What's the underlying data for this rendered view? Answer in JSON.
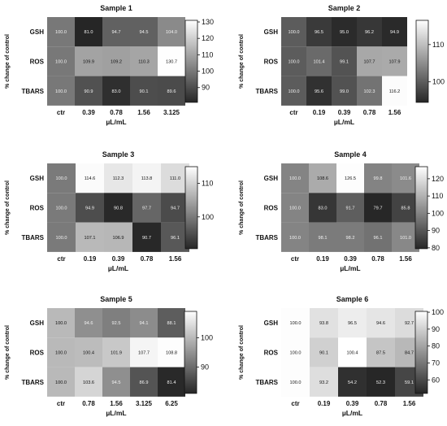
{
  "chart_data": [
    {
      "type": "heatmap",
      "title": "Sample 1",
      "rows": [
        "GSH",
        "ROS",
        "TBARS"
      ],
      "columns": [
        "ctr",
        "0.39",
        "0.78",
        "1.56",
        "3.125"
      ],
      "values": [
        [
          100.0,
          81.0,
          94.7,
          94.5,
          104.0
        ],
        [
          100.0,
          109.9,
          109.2,
          110.3,
          130.7
        ],
        [
          100.0,
          90.9,
          83.0,
          90.1,
          89.6
        ]
      ],
      "value_labels": [
        [
          "100.0",
          "81.0",
          "94.7",
          "94.5",
          "104.0"
        ],
        [
          "100.0",
          "109.9",
          "109.2",
          "110.3",
          "130.7"
        ],
        [
          "100.0",
          "90.9",
          "83.0",
          "90.1",
          "89.6"
        ]
      ],
      "xlabel": "µL/mL",
      "ylabel": "% change of control",
      "colorbar": {
        "min": 81,
        "max": 131,
        "ticks": [
          "90",
          "100",
          "110",
          "120",
          "130"
        ],
        "tick_values": [
          90,
          100,
          110,
          120,
          130
        ]
      }
    },
    {
      "type": "heatmap",
      "title": "Sample 2",
      "rows": [
        "GSH",
        "ROS",
        "TBARS"
      ],
      "columns": [
        "ctr",
        "0.19",
        "0.39",
        "0.78",
        "1.56"
      ],
      "values": [
        [
          100.0,
          96.5,
          95.0,
          96.2,
          94.9
        ],
        [
          100.0,
          101.4,
          99.1,
          107.7,
          107.9
        ],
        [
          100.0,
          95.6,
          99.0,
          102.3,
          116.2
        ]
      ],
      "value_labels": [
        [
          "100.0",
          "96.5",
          "95.0",
          "96.2",
          "94.9"
        ],
        [
          "100.0",
          "101.4",
          "99.1",
          "107.7",
          "107.9"
        ],
        [
          "100.0",
          "95.6",
          "99.0",
          "102.3",
          "116.2"
        ]
      ],
      "xlabel": "µL/mL",
      "ylabel": "% change of control",
      "colorbar": {
        "min": 94.5,
        "max": 116.5,
        "ticks": [
          "100",
          "110"
        ],
        "tick_values": [
          100,
          110
        ]
      }
    },
    {
      "type": "heatmap",
      "title": "Sample 3",
      "rows": [
        "GSH",
        "ROS",
        "TBARS"
      ],
      "columns": [
        "ctr",
        "0.19",
        "0.39",
        "0.78",
        "1.56"
      ],
      "values": [
        [
          100.0,
          114.6,
          112.3,
          113.8,
          111.0
        ],
        [
          100.0,
          94.9,
          90.8,
          97.7,
          94.7
        ],
        [
          100.0,
          107.1,
          106.9,
          90.7,
          96.1
        ]
      ],
      "value_labels": [
        [
          "100.0",
          "114.6",
          "112.3",
          "113.8",
          "111.0"
        ],
        [
          "100.0",
          "94.9",
          "90.8",
          "97.7",
          "94.7"
        ],
        [
          "100.0",
          "107.1",
          "106.9",
          "90.7",
          "96.1"
        ]
      ],
      "xlabel": "µL/mL",
      "ylabel": "% change of control",
      "colorbar": {
        "min": 90.5,
        "max": 115,
        "ticks": [
          "100",
          "110"
        ],
        "tick_values": [
          100,
          110
        ]
      }
    },
    {
      "type": "heatmap",
      "title": "Sample 4",
      "rows": [
        "GSH",
        "ROS",
        "TBARS"
      ],
      "columns": [
        "ctr",
        "0.19",
        "0.39",
        "0.78",
        "1.56"
      ],
      "values": [
        [
          100.0,
          108.6,
          126.5,
          99.8,
          101.6
        ],
        [
          100.0,
          83.0,
          91.7,
          79.7,
          85.8
        ],
        [
          100.0,
          98.1,
          98.2,
          96.1,
          101.0
        ]
      ],
      "value_labels": [
        [
          "100.0",
          "108.6",
          "126.5",
          "99.8",
          "101.6"
        ],
        [
          "100.0",
          "83.0",
          "91.7",
          "79.7",
          "85.8"
        ],
        [
          "100.0",
          "98.1",
          "98.2",
          "96.1",
          "101.0"
        ]
      ],
      "xlabel": "µL/mL",
      "ylabel": "% change of control",
      "colorbar": {
        "min": 79.5,
        "max": 127,
        "ticks": [
          "80",
          "90",
          "100",
          "110",
          "120"
        ],
        "tick_values": [
          80,
          90,
          100,
          110,
          120
        ]
      }
    },
    {
      "type": "heatmap",
      "title": "Sample 5",
      "rows": [
        "GSH",
        "ROS",
        "TBARS"
      ],
      "columns": [
        "ctr",
        "0.78",
        "1.56",
        "3.125",
        "6.25"
      ],
      "values": [
        [
          100.0,
          94.6,
          92.5,
          94.1,
          88.1
        ],
        [
          100.0,
          100.4,
          101.9,
          107.7,
          108.8
        ],
        [
          100.0,
          103.6,
          94.5,
          86.9,
          81.4
        ]
      ],
      "value_labels": [
        [
          "100.0",
          "94.6",
          "92.5",
          "94.1",
          "88.1"
        ],
        [
          "100.0",
          "100.4",
          "101.9",
          "107.7",
          "108.8"
        ],
        [
          "100.0",
          "103.6",
          "94.5",
          "86.9",
          "81.4"
        ]
      ],
      "xlabel": "µL/mL",
      "ylabel": "% change of control",
      "colorbar": {
        "min": 81,
        "max": 109,
        "ticks": [
          "90",
          "100"
        ],
        "tick_values": [
          90,
          100
        ]
      }
    },
    {
      "type": "heatmap",
      "title": "Sample 6",
      "rows": [
        "GSH",
        "ROS",
        "TBARS"
      ],
      "columns": [
        "ctr",
        "0.19",
        "0.39",
        "0.78",
        "1.56"
      ],
      "values": [
        [
          100.0,
          93.8,
          96.5,
          94.6,
          92.7
        ],
        [
          100.0,
          90.1,
          100.4,
          87.5,
          84.7
        ],
        [
          100.0,
          93.2,
          54.2,
          52.3,
          59.1
        ]
      ],
      "value_labels": [
        [
          "100.0",
          "93.8",
          "96.5",
          "94.6",
          "92.7"
        ],
        [
          "100.0",
          "90.1",
          "100.4",
          "87.5",
          "84.7"
        ],
        [
          "100.0",
          "93.2",
          "54.2",
          "52.3",
          "59.1"
        ]
      ],
      "xlabel": "µL/mL",
      "ylabel": "% change of control",
      "colorbar": {
        "min": 52,
        "max": 100.5,
        "ticks": [
          "60",
          "70",
          "80",
          "90",
          "100"
        ],
        "tick_values": [
          60,
          70,
          80,
          90,
          100
        ]
      }
    }
  ],
  "colors": {
    "low": "#262626",
    "high": "#ffffff",
    "text": "#111111"
  }
}
